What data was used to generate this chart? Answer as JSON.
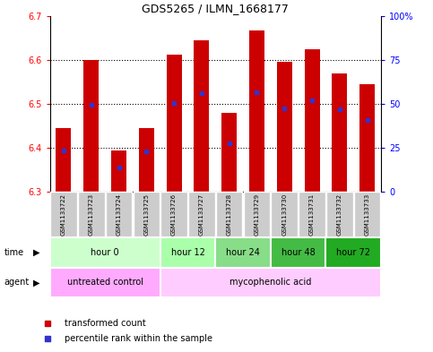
{
  "title": "GDS5265 / ILMN_1668177",
  "samples": [
    "GSM1133722",
    "GSM1133723",
    "GSM1133724",
    "GSM1133725",
    "GSM1133726",
    "GSM1133727",
    "GSM1133728",
    "GSM1133729",
    "GSM1133730",
    "GSM1133731",
    "GSM1133732",
    "GSM1133733"
  ],
  "bar_tops": [
    6.445,
    6.6,
    6.395,
    6.445,
    6.612,
    6.645,
    6.48,
    6.667,
    6.595,
    6.625,
    6.57,
    6.545
  ],
  "bar_bottom": 6.3,
  "percentile_values": [
    6.393,
    6.497,
    6.355,
    6.392,
    6.502,
    6.525,
    6.41,
    6.527,
    6.49,
    6.508,
    6.488,
    6.463
  ],
  "ylim": [
    6.3,
    6.7
  ],
  "yticks_left": [
    6.3,
    6.4,
    6.5,
    6.6,
    6.7
  ],
  "right_pct_ticks": [
    0,
    25,
    50,
    75,
    100
  ],
  "right_pct_labels": [
    "0",
    "25",
    "50",
    "75",
    "100%"
  ],
  "bar_color": "#cc0000",
  "percentile_color": "#3333cc",
  "plot_bg": "#ffffff",
  "fig_bg": "#ffffff",
  "time_groups": [
    {
      "label": "hour 0",
      "start": 0,
      "end": 4,
      "color": "#ccffcc"
    },
    {
      "label": "hour 12",
      "start": 4,
      "end": 6,
      "color": "#aaffaa"
    },
    {
      "label": "hour 24",
      "start": 6,
      "end": 8,
      "color": "#88dd88"
    },
    {
      "label": "hour 48",
      "start": 8,
      "end": 10,
      "color": "#44bb44"
    },
    {
      "label": "hour 72",
      "start": 10,
      "end": 12,
      "color": "#22aa22"
    }
  ],
  "agent_groups": [
    {
      "label": "untreated control",
      "start": 0,
      "end": 4,
      "color": "#ffaaff"
    },
    {
      "label": "mycophenolic acid",
      "start": 4,
      "end": 12,
      "color": "#ffccff"
    }
  ],
  "sample_box_color": "#cccccc",
  "legend_items": [
    {
      "label": "transformed count",
      "color": "#cc0000",
      "marker": "s"
    },
    {
      "label": "percentile rank within the sample",
      "color": "#3333cc",
      "marker": "s"
    }
  ]
}
